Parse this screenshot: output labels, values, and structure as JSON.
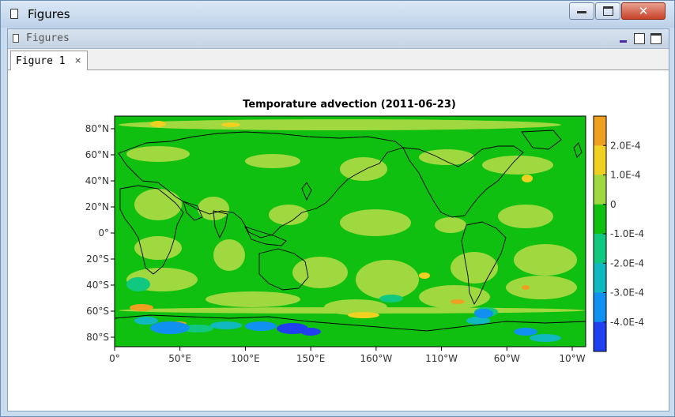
{
  "window": {
    "title": "Figures"
  },
  "panel": {
    "title": "Figures"
  },
  "tabs": [
    {
      "label": "Figure 1",
      "close": "×"
    }
  ],
  "chart_data": {
    "type": "heatmap",
    "title": "Temporature advection (2011-06-23)",
    "x_ticks": [
      "0°",
      "50°E",
      "100°E",
      "150°E",
      "160°W",
      "110°W",
      "60°W",
      "10°W"
    ],
    "y_ticks": [
      "80°N",
      "60°N",
      "40°N",
      "20°N",
      "0°",
      "20°S",
      "40°S",
      "60°S",
      "80°S"
    ],
    "colorbar_labels": [
      "2.0E-4",
      "1.0E-4",
      "0",
      "-1.0E-4",
      "-2.0E-4",
      "-3.0E-4",
      "-4.0E-4"
    ],
    "colorbar_colors": [
      "#f0a020",
      "#f0d020",
      "#a0d840",
      "#10c010",
      "#10c880",
      "#10b8c0",
      "#1090f0",
      "#2040f0"
    ],
    "field_colors": {
      "base": "#10c010",
      "light": "#a0d840",
      "yellow": "#f0d020",
      "orange": "#f0a020",
      "teal": "#10c880",
      "cyan": "#10b8c0",
      "blue": "#1090f0",
      "deep_blue": "#2040f0"
    }
  }
}
